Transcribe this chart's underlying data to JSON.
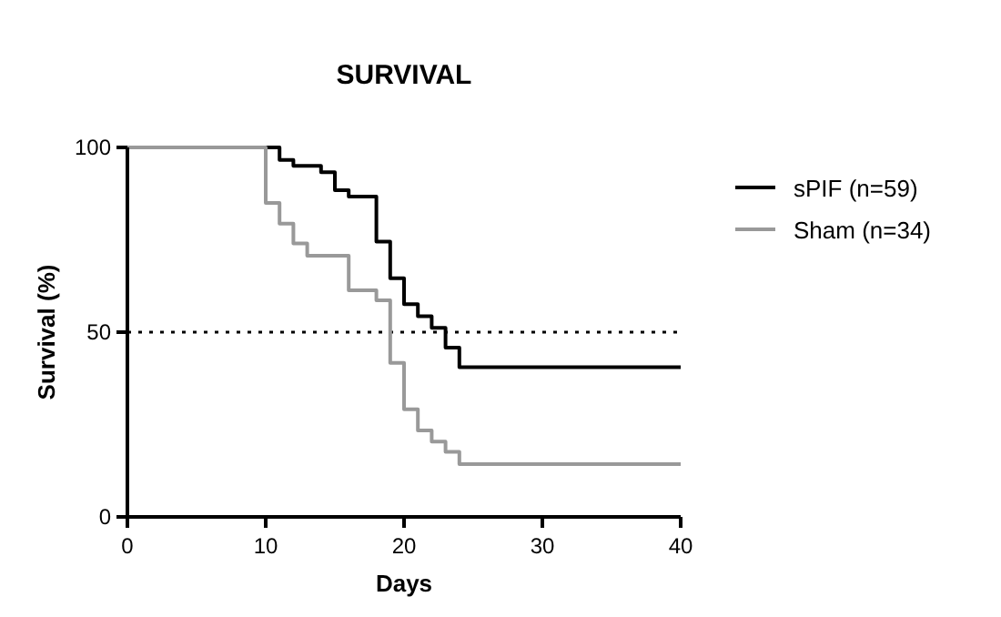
{
  "chart_data": {
    "type": "step",
    "title": "SURVIVAL",
    "xlabel": "Days",
    "ylabel": "Survival (%)",
    "xlim": [
      0,
      40
    ],
    "xticks": [
      0,
      10,
      20,
      30,
      40
    ],
    "ylim": [
      0,
      100
    ],
    "yticks": [
      0,
      50,
      100
    ],
    "grid": false,
    "legend": "right",
    "line_style": "solid",
    "marker": "none",
    "ref_lines": [
      {
        "axis": "y",
        "value": 50,
        "line_style": "dotted",
        "color": "#000000"
      }
    ],
    "series": [
      {
        "name": "sPIF (n=59)",
        "color": "#000000",
        "x": [
          0,
          11,
          12,
          14,
          15,
          16,
          18,
          19,
          20,
          21,
          22,
          23,
          24,
          40
        ],
        "values": [
          100,
          96.6,
          95,
          93.3,
          88.4,
          86.7,
          74.5,
          64.6,
          57.6,
          54.3,
          51.2,
          45.8,
          40.5,
          40.5
        ]
      },
      {
        "name": "Sham (n=34)",
        "color": "#999999",
        "x": [
          0,
          10,
          11,
          12,
          13,
          16,
          18,
          19,
          20,
          21,
          22,
          23,
          24,
          40
        ],
        "values": [
          100,
          85,
          79.4,
          74,
          70.7,
          61.3,
          58.6,
          41.7,
          29.1,
          23.4,
          20.4,
          17.6,
          14.3,
          14.3
        ]
      }
    ]
  }
}
